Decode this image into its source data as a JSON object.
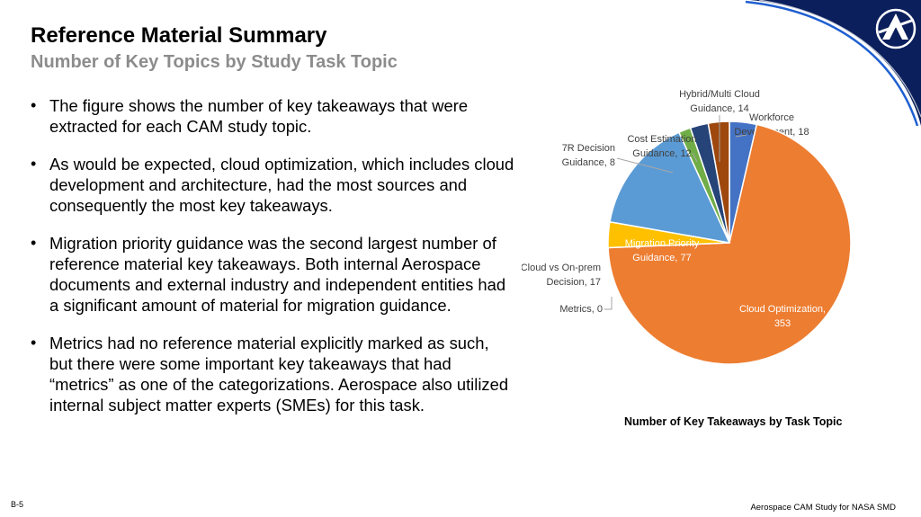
{
  "header": {
    "title": "Reference Material Summary",
    "subtitle": "Number of Key Topics by Study Task Topic"
  },
  "bullets": [
    "The figure shows the number of key takeaways that were extracted for each CAM study topic.",
    "As would be expected, cloud optimization, which includes cloud development and architecture, had the most sources and consequently the most key takeaways.",
    "Migration priority guidance was the second largest number of reference material key takeaways. Both internal Aerospace documents and external industry and independent entities had a significant amount of material for migration guidance.",
    "Metrics had no reference material explicitly marked as such, but there were some important key takeaways that had “metrics” as one of the categorizations. Aerospace also utilized internal subject matter experts (SMEs) for this task."
  ],
  "chart_data": {
    "type": "pie",
    "title": "Number of Key Takeaways by Task Topic",
    "slices": [
      {
        "label": [
          "Workforce",
          "Development, 18"
        ],
        "value": 18,
        "color": "#4472C4"
      },
      {
        "label": [
          "Cloud Optimization,",
          "353"
        ],
        "value": 353,
        "color": "#ED7D31"
      },
      {
        "label": [
          "Metrics, 0"
        ],
        "value": 0,
        "color": "#A5A5A5"
      },
      {
        "label": [
          "Cloud vs On-prem",
          "Decision, 17"
        ],
        "value": 17,
        "color": "#FFC000"
      },
      {
        "label": [
          "Migration Priority",
          "Guidance, 77"
        ],
        "value": 77,
        "color": "#5B9BD5"
      },
      {
        "label": [
          "7R Decision",
          "Guidance, 8"
        ],
        "value": 8,
        "color": "#70AD47"
      },
      {
        "label": [
          "Cost Estimation",
          "Guidance, 12"
        ],
        "value": 12,
        "color": "#264478"
      },
      {
        "label": [
          "Hybrid/Multi Cloud",
          "Guidance, 14"
        ],
        "value": 14,
        "color": "#9E480E"
      }
    ]
  },
  "footer": {
    "page": "B-5",
    "text": "Aerospace CAM Study for NASA SMD"
  },
  "brand": {
    "logo": "aerospace-logo-icon",
    "navy": "#0b1f5c",
    "blue": "#1f5fd1"
  }
}
